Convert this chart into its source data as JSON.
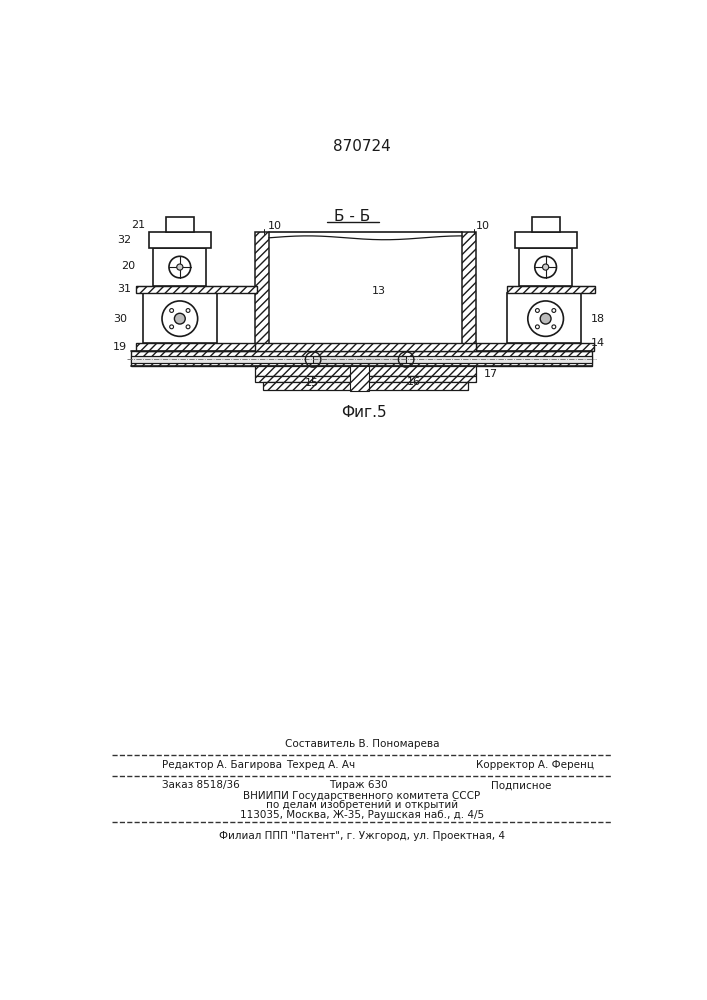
{
  "title_patent": "870724",
  "section_label": "Б - Б",
  "fig_label": "Фиг.5",
  "bg_color": "#ffffff",
  "line_color": "#1a1a1a",
  "footer_line1_left": "Редактор А. Багирова",
  "footer_line1_center": "Составитель В. Пономарева",
  "footer_line1_right": "Корректор А. Ференц",
  "footer_line2_left": "Техред А. Ач",
  "footer_line3_left": "Заказ 8518/36",
  "footer_line3_center": "Тираж 630",
  "footer_line3_right": "Подписное",
  "footer_line4": "ВНИИПИ Государственного комитета СССР",
  "footer_line5": "по делам изобретений и открытий",
  "footer_line6": "113035, Москва, Ж-35, Раушская наб., д. 4/5",
  "footer_line7": "Филиал ППП \"Патент\", г. Ужгород, ул. Проектная, 4"
}
